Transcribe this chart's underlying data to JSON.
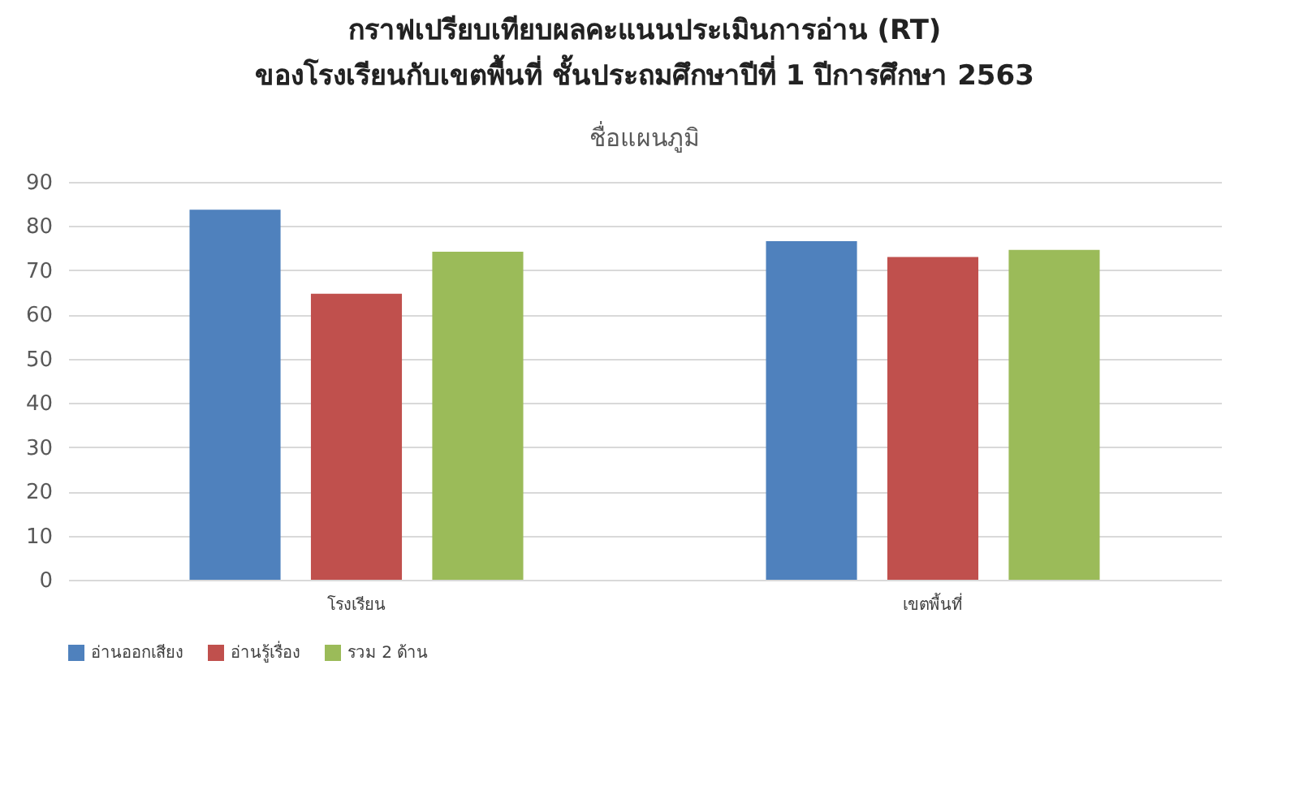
{
  "chart_data": {
    "type": "bar",
    "title": "กราฟเปรียบเทียบผลคะแนนประเมินการอ่าน (RT)\nของโรงเรียนกับเขตพื้นที่ ชั้นประถมศึกษาปีที่ 1 ปีการศึกษา 2563",
    "subtitle": "ชื่อแผนภูมิ",
    "categories": [
      "โรงเรียน",
      "เขตพื้นที่"
    ],
    "series": [
      {
        "name": "อ่านออกเสียง",
        "color": "#4f81bd",
        "values": [
          83.7,
          76.6
        ]
      },
      {
        "name": "อ่านรู้เรื่อง",
        "color": "#c0504d",
        "values": [
          64.7,
          73.0
        ]
      },
      {
        "name": "รวม 2 ด้าน",
        "color": "#9bbb59",
        "values": [
          74.2,
          74.6
        ]
      }
    ],
    "ylim": [
      0,
      90
    ],
    "yticks": [
      0,
      10,
      20,
      30,
      40,
      50,
      60,
      70,
      80,
      90
    ],
    "grid": "y",
    "legend": "bottom"
  }
}
